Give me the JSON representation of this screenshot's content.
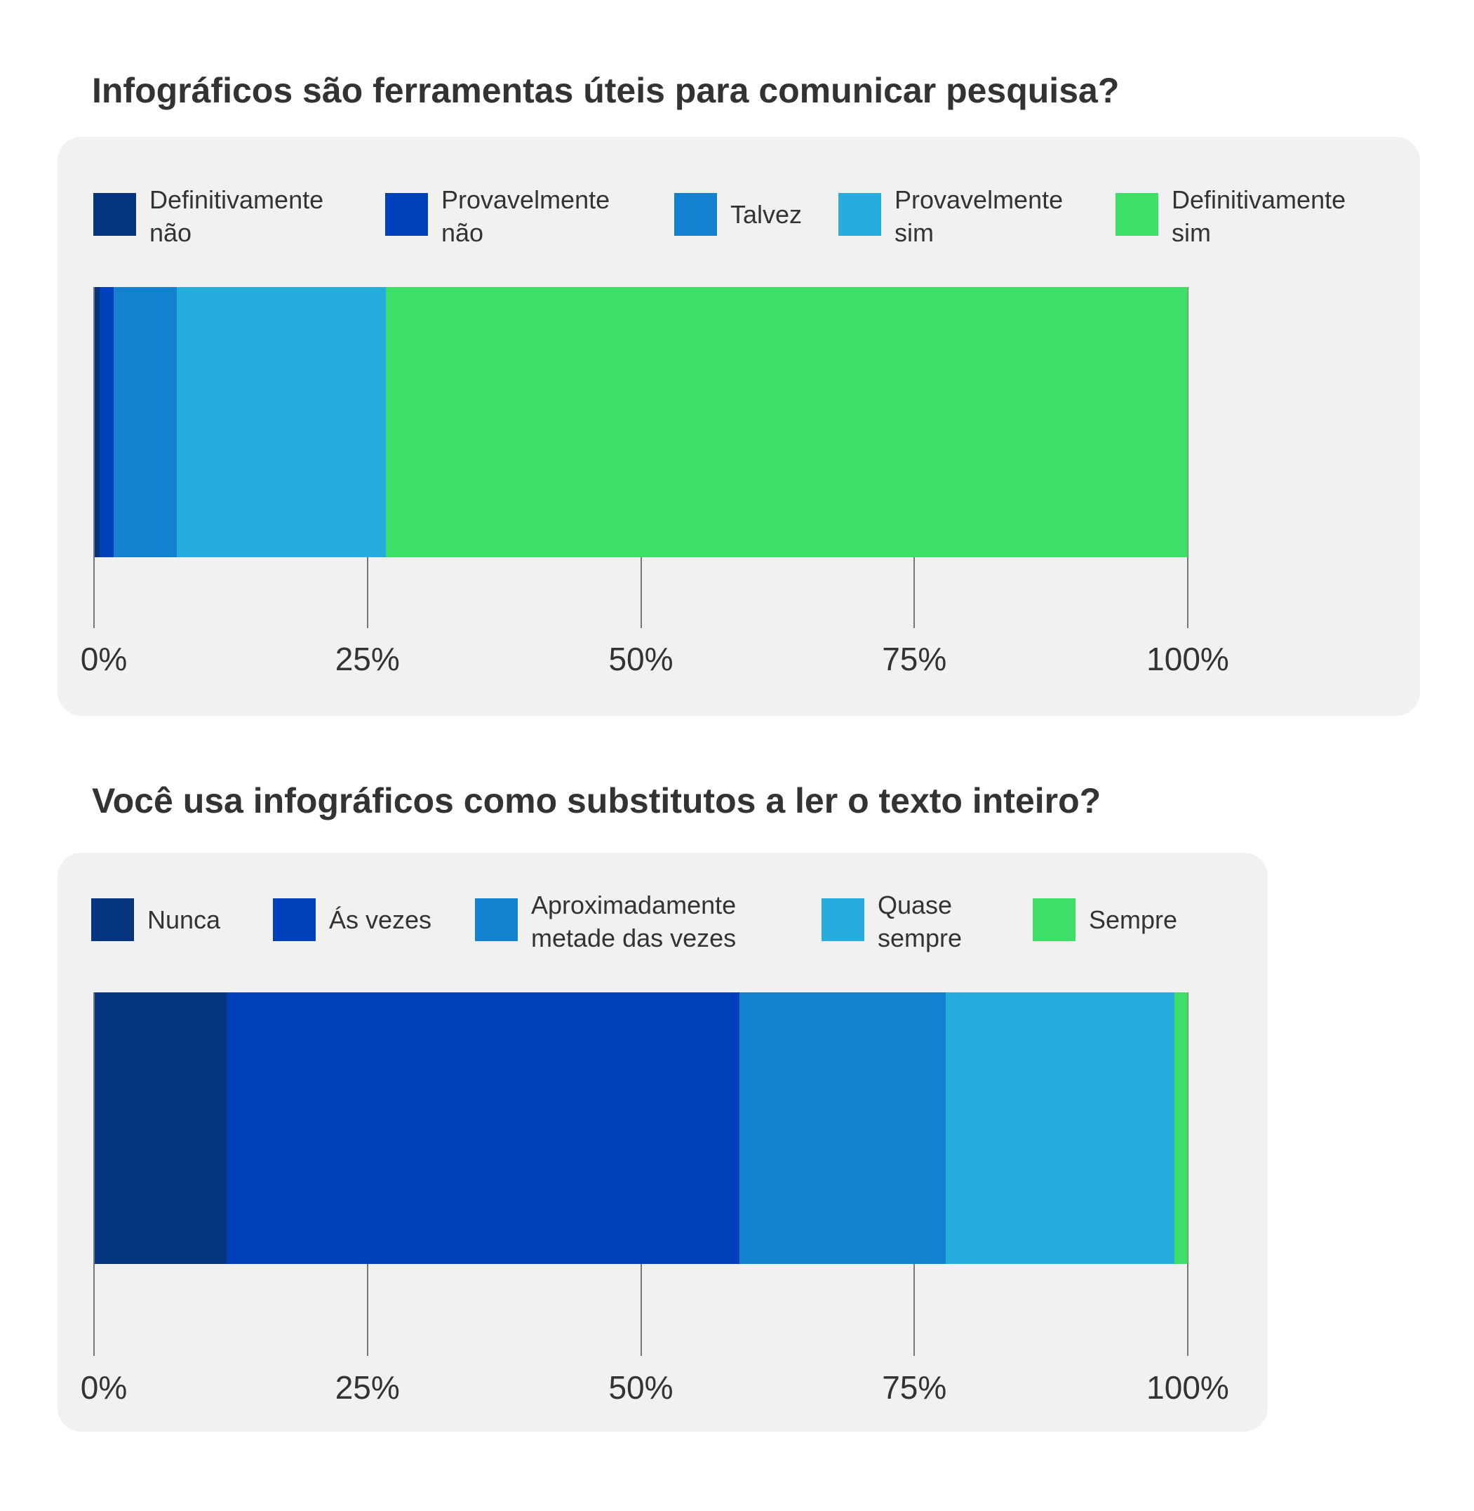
{
  "chart_data": [
    {
      "type": "bar",
      "orientation": "horizontal-stacked",
      "title": "Infográficos são ferramentas úteis para comunicar pesquisa?",
      "xlim": [
        0,
        100
      ],
      "ticks": [
        "0%",
        "25%",
        "50%",
        "75%",
        "100%"
      ],
      "legend_position": "top",
      "series": [
        {
          "name": "Definitivamente não",
          "value": 0.5,
          "color": "#06357f"
        },
        {
          "name": "Provavelmente não",
          "value": 1.3,
          "color": "#0041bb"
        },
        {
          "name": "Talvez",
          "value": 5.8,
          "color": "#1380d0"
        },
        {
          "name": "Provavelmente sim",
          "value": 19.1,
          "color": "#26acdd"
        },
        {
          "name": "Definitivamente sim",
          "value": 73.3,
          "color": "#3ddf67"
        }
      ]
    },
    {
      "type": "bar",
      "orientation": "horizontal-stacked",
      "title": "Você usa infográficos como substitutos a ler o texto inteiro?",
      "xlim": [
        0,
        100
      ],
      "ticks": [
        "0%",
        "25%",
        "50%",
        "75%",
        "100%"
      ],
      "legend_position": "top",
      "series": [
        {
          "name": "Nunca",
          "value": 12.1,
          "color": "#06357f"
        },
        {
          "name": "Ás vezes",
          "value": 46.9,
          "color": "#0041bb"
        },
        {
          "name": "Aproximadamente metade das vezes",
          "value": 18.9,
          "color": "#1380d0"
        },
        {
          "name": "Quase sempre",
          "value": 20.9,
          "color": "#26acdd"
        },
        {
          "name": "Sempre",
          "value": 1.2,
          "color": "#3ddf67"
        }
      ]
    }
  ]
}
